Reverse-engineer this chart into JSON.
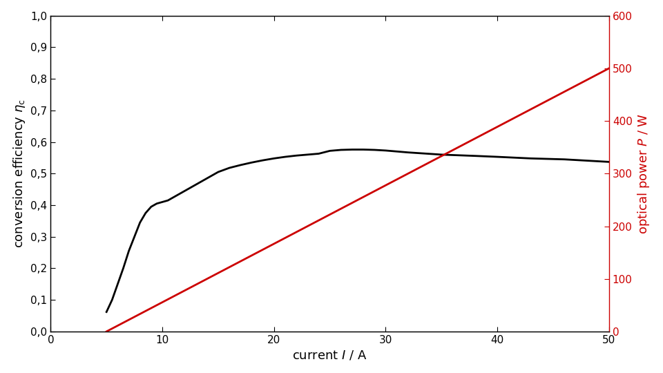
{
  "xlim": [
    0,
    50
  ],
  "ylim_left": [
    0.0,
    1.0
  ],
  "ylim_right": [
    0,
    600
  ],
  "xticks": [
    0,
    10,
    20,
    30,
    40,
    50
  ],
  "yticks_left": [
    0.0,
    0.1,
    0.2,
    0.3,
    0.4,
    0.5,
    0.6,
    0.7,
    0.8,
    0.9,
    1.0
  ],
  "yticks_right": [
    0,
    100,
    200,
    300,
    400,
    500,
    600
  ],
  "efficiency_current": [
    5.0,
    5.5,
    6.0,
    6.5,
    7.0,
    7.5,
    8.0,
    8.5,
    9.0,
    9.5,
    10.0,
    10.5,
    11.0,
    12.0,
    13.0,
    14.0,
    15.0,
    16.0,
    17.0,
    18.0,
    19.0,
    20.0,
    21.0,
    22.0,
    23.0,
    24.0,
    25.0,
    26.0,
    27.0,
    28.0,
    29.0,
    30.0,
    32.0,
    35.0,
    38.0,
    40.0,
    43.0,
    46.0,
    50.0
  ],
  "efficiency_values": [
    0.062,
    0.1,
    0.15,
    0.2,
    0.255,
    0.3,
    0.345,
    0.375,
    0.395,
    0.405,
    0.41,
    0.415,
    0.425,
    0.445,
    0.465,
    0.485,
    0.505,
    0.518,
    0.527,
    0.535,
    0.542,
    0.548,
    0.553,
    0.557,
    0.56,
    0.563,
    0.572,
    0.575,
    0.576,
    0.576,
    0.575,
    0.573,
    0.567,
    0.56,
    0.556,
    0.553,
    0.548,
    0.545,
    0.537
  ],
  "power_current": [
    5.0,
    50.0
  ],
  "power_values": [
    0.0,
    500.0
  ],
  "line_color_efficiency": "#000000",
  "line_color_power": "#cc0000",
  "line_width": 2.0,
  "background_color": "#ffffff",
  "xlabel_text": "current $I$ / A",
  "ylabel_left_text": "conversion efficiency $\\eta_\\mathrm{c}$",
  "ylabel_right_text": "optical power $P$ / W",
  "fontsize_label": 13,
  "fontsize_tick": 11
}
